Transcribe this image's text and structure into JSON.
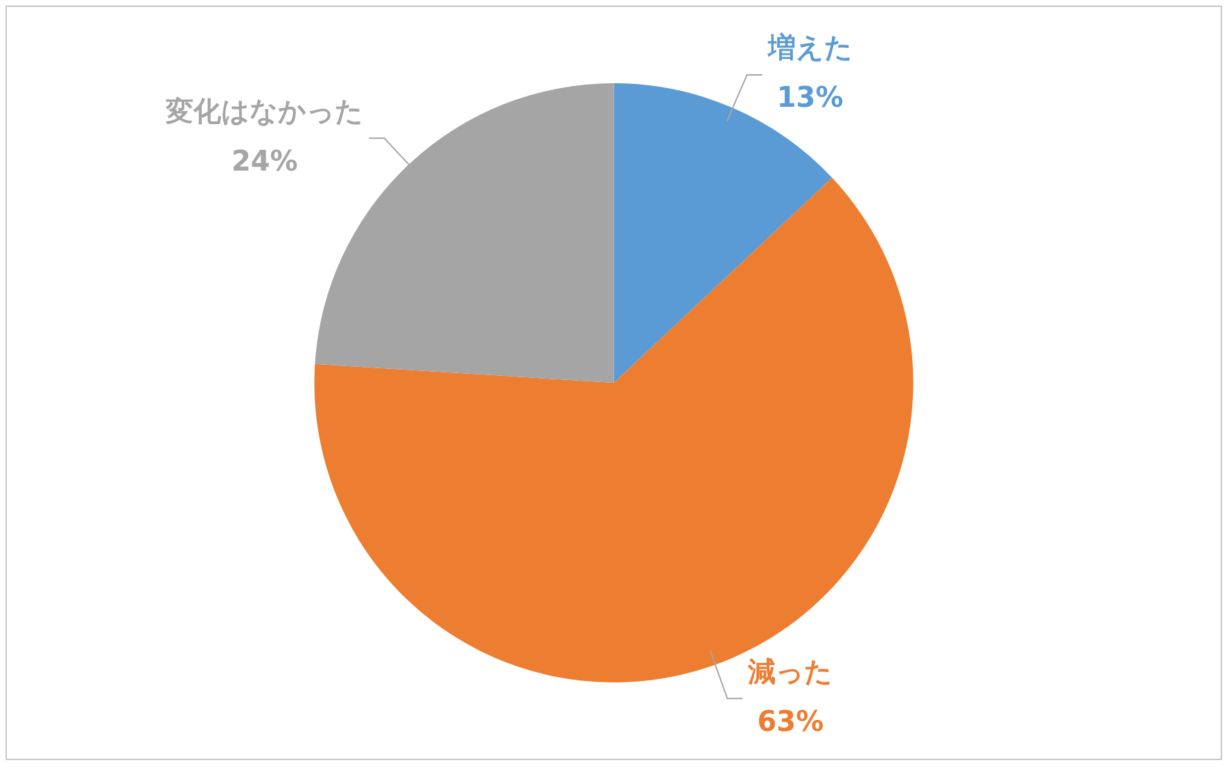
{
  "chart_data": {
    "type": "pie",
    "categories": [
      "増えた",
      "減った",
      "変化はなかった"
    ],
    "values": [
      13,
      63,
      24
    ],
    "colors": [
      "#5b9bd5",
      "#ed7d31",
      "#a5a5a5"
    ],
    "value_labels": [
      "13%",
      "63%",
      "24%"
    ],
    "legend": false
  }
}
